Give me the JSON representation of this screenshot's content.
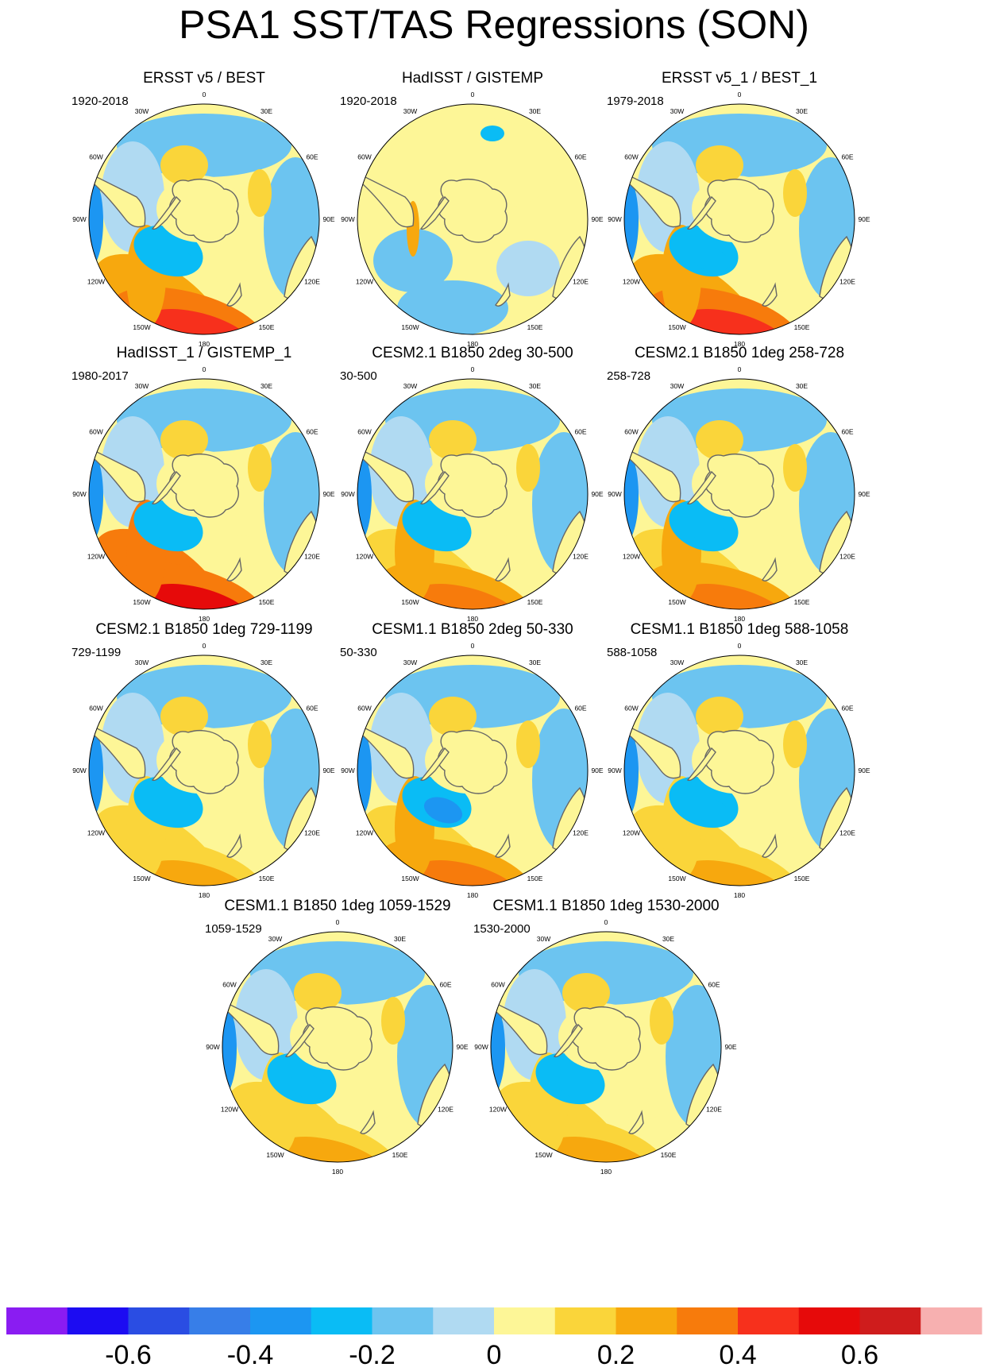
{
  "title": "PSA1 SST/TAS Regressions (SON)",
  "chart_data": {
    "type": "heatmap",
    "title": "PSA1 SST/TAS Regressions (SON)",
    "projection": "south-polar-stereographic",
    "longitude_labels": [
      "0",
      "30E",
      "60E",
      "90E",
      "120E",
      "150E",
      "180",
      "150W",
      "120W",
      "90W",
      "60W",
      "30W"
    ],
    "panels": [
      {
        "title": "ERSST v5 / BEST",
        "years": "1920-2018",
        "peak_positive": 0.4,
        "peak_negative": -0.3
      },
      {
        "title": "HadISST / GISTEMP",
        "years": "1920-2018",
        "peak_positive": 0.2,
        "peak_negative": -0.3
      },
      {
        "title": "ERSST v5_1 / BEST_1",
        "years": "1979-2018",
        "peak_positive": 0.4,
        "peak_negative": -0.3
      },
      {
        "title": "HadISST_1 / GISTEMP_1",
        "years": "1980-2017",
        "peak_positive": 0.5,
        "peak_negative": -0.3
      },
      {
        "title": "CESM2.1 B1850 2deg 30-500",
        "years": "30-500",
        "peak_positive": 0.3,
        "peak_negative": -0.3
      },
      {
        "title": "CESM2.1 B1850 1deg 258-728",
        "years": "258-728",
        "peak_positive": 0.3,
        "peak_negative": -0.3
      },
      {
        "title": "CESM2.1 B1850 1deg 729-1199",
        "years": "729-1199",
        "peak_positive": 0.2,
        "peak_negative": -0.3
      },
      {
        "title": "CESM1.1 B1850 2deg 50-330",
        "years": "50-330",
        "peak_positive": 0.3,
        "peak_negative": -0.4
      },
      {
        "title": "CESM1.1 B1850 1deg 588-1058",
        "years": "588-1058",
        "peak_positive": 0.2,
        "peak_negative": -0.3
      },
      {
        "title": "CESM1.1 B1850 1deg 1059-1529",
        "years": "1059-1529",
        "peak_positive": 0.2,
        "peak_negative": -0.3
      },
      {
        "title": "CESM1.1 B1850 1deg 1530-2000",
        "years": "1530-2000",
        "peak_positive": 0.2,
        "peak_negative": -0.3
      }
    ],
    "colorbar": {
      "colors": [
        "#8a1cf2",
        "#1c0cf2",
        "#2a4de3",
        "#377ee8",
        "#1c96f2",
        "#0abcf5",
        "#6cc4f0",
        "#b0daf2",
        "#fdf697",
        "#fad53a",
        "#f7a80e",
        "#f77b0c",
        "#f7301c",
        "#e60a0a",
        "#cf1c1c",
        "#f7b0b0"
      ],
      "ticks": [
        -0.6,
        -0.4,
        -0.2,
        0,
        0.2,
        0.4,
        0.6
      ],
      "tick_labels": [
        "-0.6",
        "-0.4",
        "-0.2",
        "0",
        "0.2",
        "0.4",
        "0.6"
      ],
      "levels": [
        -0.7,
        -0.6,
        -0.5,
        -0.4,
        -0.3,
        -0.2,
        -0.1,
        0,
        0.1,
        0.2,
        0.3,
        0.4,
        0.5,
        0.6,
        0.7
      ]
    }
  }
}
